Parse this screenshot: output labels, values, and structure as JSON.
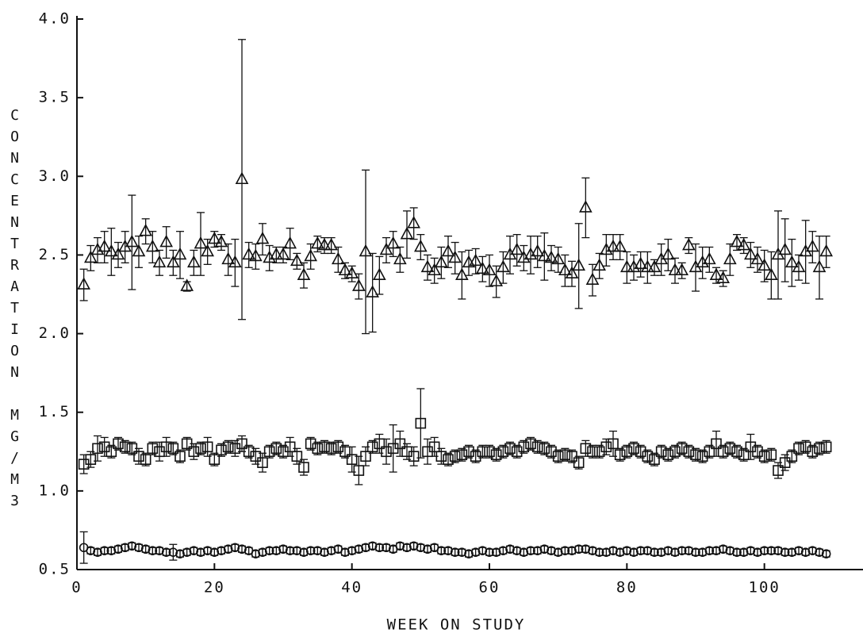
{
  "chart_data": {
    "type": "scatter",
    "x_label": "WEEK ON STUDY",
    "y_label": "CONCENTRATION MG/M3",
    "xlim": [
      0,
      114
    ],
    "xticks": [
      0,
      20,
      40,
      60,
      80,
      100
    ],
    "ylim": [
      0.5,
      4.0
    ],
    "yticks": [
      0.5,
      {
        "value": 1,
        "label": "1.0"
      },
      1.5,
      {
        "value": 2,
        "label": "2.0"
      },
      2.5,
      {
        "value": 3,
        "label": "3.0"
      },
      3.5,
      {
        "value": 4,
        "label": "4.0"
      }
    ],
    "x": [
      1,
      2,
      3,
      4,
      5,
      6,
      7,
      8,
      9,
      10,
      11,
      12,
      13,
      14,
      15,
      16,
      17,
      18,
      19,
      20,
      21,
      22,
      23,
      24,
      25,
      26,
      27,
      28,
      29,
      30,
      31,
      32,
      33,
      34,
      35,
      36,
      37,
      38,
      39,
      40,
      41,
      42,
      43,
      44,
      45,
      46,
      47,
      48,
      49,
      50,
      51,
      52,
      53,
      54,
      55,
      56,
      57,
      58,
      59,
      60,
      61,
      62,
      63,
      64,
      65,
      66,
      67,
      68,
      69,
      70,
      71,
      72,
      73,
      74,
      75,
      76,
      77,
      78,
      79,
      80,
      81,
      82,
      83,
      84,
      85,
      86,
      87,
      88,
      89,
      90,
      91,
      92,
      93,
      94,
      95,
      96,
      97,
      98,
      99,
      100,
      101,
      102,
      103,
      104,
      105,
      106,
      107,
      108,
      109
    ],
    "series": [
      {
        "marker": "triangle",
        "color": "#111111",
        "values": [
          2.31,
          2.48,
          2.53,
          2.55,
          2.52,
          2.5,
          2.55,
          2.58,
          2.52,
          2.65,
          2.55,
          2.45,
          2.58,
          2.45,
          2.5,
          2.3,
          2.45,
          2.57,
          2.52,
          2.6,
          2.58,
          2.47,
          2.45,
          2.98,
          2.5,
          2.49,
          2.6,
          2.48,
          2.5,
          2.5,
          2.57,
          2.46,
          2.37,
          2.49,
          2.57,
          2.56,
          2.56,
          2.47,
          2.4,
          2.38,
          2.3,
          2.52,
          2.26,
          2.37,
          2.53,
          2.57,
          2.47,
          2.63,
          2.7,
          2.55,
          2.42,
          2.4,
          2.45,
          2.52,
          2.48,
          2.37,
          2.45,
          2.46,
          2.41,
          2.4,
          2.33,
          2.42,
          2.5,
          2.53,
          2.48,
          2.5,
          2.52,
          2.49,
          2.48,
          2.47,
          2.4,
          2.38,
          2.43,
          2.8,
          2.34,
          2.43,
          2.53,
          2.55,
          2.55,
          2.42,
          2.42,
          2.44,
          2.42,
          2.42,
          2.47,
          2.5,
          2.4,
          2.4,
          2.56,
          2.42,
          2.45,
          2.47,
          2.37,
          2.35,
          2.47,
          2.58,
          2.56,
          2.5,
          2.47,
          2.43,
          2.37,
          2.5,
          2.53,
          2.45,
          2.42,
          2.52,
          2.55,
          2.42,
          2.52
        ],
        "errors": [
          0.1,
          0.08,
          0.08,
          0.1,
          0.15,
          0.08,
          0.1,
          0.3,
          0.1,
          0.08,
          0.1,
          0.08,
          0.1,
          0.08,
          0.15,
          0.03,
          0.08,
          0.2,
          0.08,
          0.05,
          0.05,
          0.1,
          0.15,
          0.89,
          0.08,
          0.08,
          0.1,
          0.08,
          0.05,
          0.05,
          0.1,
          0.05,
          0.08,
          0.08,
          0.05,
          0.05,
          0.05,
          0.08,
          0.05,
          0.05,
          0.08,
          0.52,
          0.25,
          0.12,
          0.08,
          0.08,
          0.08,
          0.15,
          0.1,
          0.08,
          0.08,
          0.08,
          0.1,
          0.1,
          0.1,
          0.15,
          0.08,
          0.08,
          0.08,
          0.1,
          0.1,
          0.1,
          0.12,
          0.1,
          0.08,
          0.12,
          0.1,
          0.15,
          0.08,
          0.08,
          0.1,
          0.08,
          0.27,
          0.19,
          0.1,
          0.08,
          0.1,
          0.08,
          0.08,
          0.1,
          0.08,
          0.08,
          0.1,
          0.05,
          0.1,
          0.1,
          0.08,
          0.05,
          0.05,
          0.15,
          0.1,
          0.08,
          0.05,
          0.05,
          0.1,
          0.05,
          0.05,
          0.08,
          0.08,
          0.1,
          0.15,
          0.28,
          0.2,
          0.15,
          0.08,
          0.2,
          0.1,
          0.2,
          0.1
        ]
      },
      {
        "marker": "square",
        "color": "#111111",
        "values": [
          1.17,
          1.2,
          1.27,
          1.28,
          1.25,
          1.3,
          1.28,
          1.27,
          1.22,
          1.2,
          1.27,
          1.25,
          1.28,
          1.27,
          1.22,
          1.3,
          1.25,
          1.27,
          1.28,
          1.2,
          1.26,
          1.28,
          1.27,
          1.3,
          1.25,
          1.22,
          1.18,
          1.25,
          1.27,
          1.25,
          1.28,
          1.22,
          1.15,
          1.3,
          1.27,
          1.28,
          1.27,
          1.28,
          1.25,
          1.2,
          1.13,
          1.22,
          1.28,
          1.3,
          1.25,
          1.27,
          1.3,
          1.25,
          1.22,
          1.43,
          1.25,
          1.28,
          1.22,
          1.2,
          1.22,
          1.23,
          1.25,
          1.22,
          1.25,
          1.25,
          1.23,
          1.25,
          1.27,
          1.25,
          1.28,
          1.3,
          1.28,
          1.27,
          1.25,
          1.22,
          1.23,
          1.22,
          1.18,
          1.27,
          1.25,
          1.25,
          1.28,
          1.3,
          1.23,
          1.25,
          1.27,
          1.25,
          1.22,
          1.2,
          1.25,
          1.23,
          1.25,
          1.27,
          1.25,
          1.23,
          1.22,
          1.25,
          1.3,
          1.25,
          1.27,
          1.25,
          1.23,
          1.28,
          1.25,
          1.22,
          1.23,
          1.13,
          1.18,
          1.22,
          1.27,
          1.28,
          1.25,
          1.27,
          1.28
        ],
        "errors": [
          0.06,
          0.05,
          0.08,
          0.06,
          0.04,
          0.04,
          0.04,
          0.04,
          0.05,
          0.04,
          0.04,
          0.06,
          0.06,
          0.04,
          0.04,
          0.04,
          0.05,
          0.04,
          0.06,
          0.04,
          0.04,
          0.04,
          0.05,
          0.05,
          0.04,
          0.05,
          0.06,
          0.04,
          0.04,
          0.04,
          0.06,
          0.05,
          0.05,
          0.04,
          0.04,
          0.04,
          0.04,
          0.04,
          0.04,
          0.08,
          0.09,
          0.06,
          0.04,
          0.06,
          0.08,
          0.15,
          0.08,
          0.05,
          0.06,
          0.22,
          0.08,
          0.06,
          0.05,
          0.04,
          0.04,
          0.04,
          0.04,
          0.04,
          0.04,
          0.04,
          0.04,
          0.04,
          0.04,
          0.04,
          0.04,
          0.04,
          0.04,
          0.04,
          0.04,
          0.04,
          0.04,
          0.04,
          0.04,
          0.05,
          0.04,
          0.04,
          0.05,
          0.08,
          0.04,
          0.04,
          0.04,
          0.04,
          0.04,
          0.04,
          0.04,
          0.04,
          0.04,
          0.04,
          0.04,
          0.04,
          0.04,
          0.04,
          0.08,
          0.04,
          0.04,
          0.04,
          0.04,
          0.08,
          0.04,
          0.04,
          0.04,
          0.05,
          0.05,
          0.04,
          0.04,
          0.04,
          0.04,
          0.04,
          0.04
        ]
      },
      {
        "marker": "circle",
        "color": "#111111",
        "values": [
          0.64,
          0.62,
          0.61,
          0.62,
          0.62,
          0.63,
          0.64,
          0.65,
          0.64,
          0.63,
          0.62,
          0.62,
          0.61,
          0.61,
          0.6,
          0.61,
          0.62,
          0.61,
          0.62,
          0.61,
          0.62,
          0.63,
          0.64,
          0.63,
          0.62,
          0.6,
          0.61,
          0.62,
          0.62,
          0.63,
          0.62,
          0.62,
          0.61,
          0.62,
          0.62,
          0.61,
          0.62,
          0.63,
          0.61,
          0.62,
          0.63,
          0.64,
          0.65,
          0.64,
          0.64,
          0.63,
          0.65,
          0.64,
          0.65,
          0.64,
          0.63,
          0.64,
          0.62,
          0.62,
          0.61,
          0.61,
          0.6,
          0.61,
          0.62,
          0.61,
          0.61,
          0.62,
          0.63,
          0.62,
          0.61,
          0.62,
          0.62,
          0.63,
          0.62,
          0.61,
          0.62,
          0.62,
          0.63,
          0.63,
          0.62,
          0.61,
          0.61,
          0.62,
          0.61,
          0.62,
          0.61,
          0.62,
          0.62,
          0.61,
          0.61,
          0.62,
          0.61,
          0.62,
          0.62,
          0.61,
          0.61,
          0.62,
          0.62,
          0.63,
          0.62,
          0.61,
          0.61,
          0.62,
          0.61,
          0.62,
          0.62,
          0.62,
          0.61,
          0.61,
          0.62,
          0.61,
          0.62,
          0.61,
          0.6
        ],
        "errors": [
          0.1,
          0.02,
          0.02,
          0.02,
          0.02,
          0.02,
          0.02,
          0.02,
          0.02,
          0.02,
          0.02,
          0.02,
          0.02,
          0.05,
          0.02,
          0.02,
          0.02,
          0.02,
          0.02,
          0.02,
          0.02,
          0.02,
          0.02,
          0.02,
          0.02,
          0.02,
          0.02,
          0.02,
          0.02,
          0.02,
          0.02,
          0.02,
          0.02,
          0.02,
          0.02,
          0.02,
          0.02,
          0.02,
          0.02,
          0.02,
          0.02,
          0.02,
          0.02,
          0.02,
          0.02,
          0.02,
          0.02,
          0.02,
          0.02,
          0.02,
          0.02,
          0.02,
          0.02,
          0.02,
          0.02,
          0.02,
          0.02,
          0.02,
          0.02,
          0.02,
          0.02,
          0.02,
          0.02,
          0.02,
          0.02,
          0.02,
          0.02,
          0.02,
          0.02,
          0.02,
          0.02,
          0.02,
          0.02,
          0.02,
          0.02,
          0.02,
          0.02,
          0.02,
          0.02,
          0.02,
          0.02,
          0.02,
          0.02,
          0.02,
          0.02,
          0.02,
          0.02,
          0.02,
          0.02,
          0.02,
          0.02,
          0.02,
          0.02,
          0.02,
          0.02,
          0.02,
          0.02,
          0.02,
          0.02,
          0.02,
          0.02,
          0.02,
          0.02,
          0.02,
          0.02,
          0.02,
          0.02,
          0.02,
          0.02
        ]
      }
    ]
  }
}
